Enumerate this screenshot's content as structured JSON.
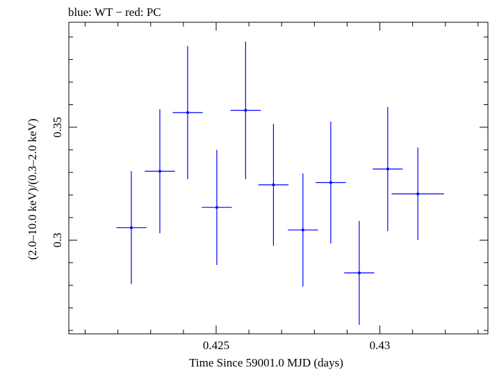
{
  "chart_data": {
    "type": "scatter",
    "title": "blue: WT − red: PC",
    "xlabel": "Time Since 59001.0 MJD (days)",
    "ylabel": "(2.0–10.0 keV)/(0.3–2.0 keV)",
    "xlim": [
      0.4205,
      0.4333
    ],
    "ylim": [
      0.2585,
      0.3965
    ],
    "x_ticks": [
      {
        "value": 0.425,
        "label": "0.425"
      },
      {
        "value": 0.43,
        "label": "0.43"
      }
    ],
    "y_ticks": [
      {
        "value": 0.3,
        "label": "0.3"
      },
      {
        "value": 0.35,
        "label": "0.35"
      }
    ],
    "series": [
      {
        "color": "#0000ff",
        "points": [
          {
            "x": 0.42241,
            "xerr": 0.00046,
            "y": 0.3055,
            "yerr": 0.025
          },
          {
            "x": 0.42328,
            "xerr": 0.00046,
            "y": 0.3305,
            "yerr": 0.0275
          },
          {
            "x": 0.42413,
            "xerr": 0.00046,
            "y": 0.3565,
            "yerr": 0.0295
          },
          {
            "x": 0.42502,
            "xerr": 0.00046,
            "y": 0.3145,
            "yerr": 0.0255
          },
          {
            "x": 0.4259,
            "xerr": 0.00046,
            "y": 0.3575,
            "yerr": 0.0305
          },
          {
            "x": 0.42675,
            "xerr": 0.00046,
            "y": 0.3245,
            "yerr": 0.027
          },
          {
            "x": 0.42765,
            "xerr": 0.00046,
            "y": 0.3045,
            "yerr": 0.025
          },
          {
            "x": 0.4285,
            "xerr": 0.00046,
            "y": 0.3255,
            "yerr": 0.027
          },
          {
            "x": 0.42937,
            "xerr": 0.00046,
            "y": 0.2855,
            "yerr": 0.023
          },
          {
            "x": 0.43024,
            "xerr": 0.00046,
            "y": 0.3315,
            "yerr": 0.0275
          },
          {
            "x": 0.43116,
            "xerr": 0.0008,
            "y": 0.3205,
            "yerr": 0.0205
          }
        ]
      }
    ]
  }
}
